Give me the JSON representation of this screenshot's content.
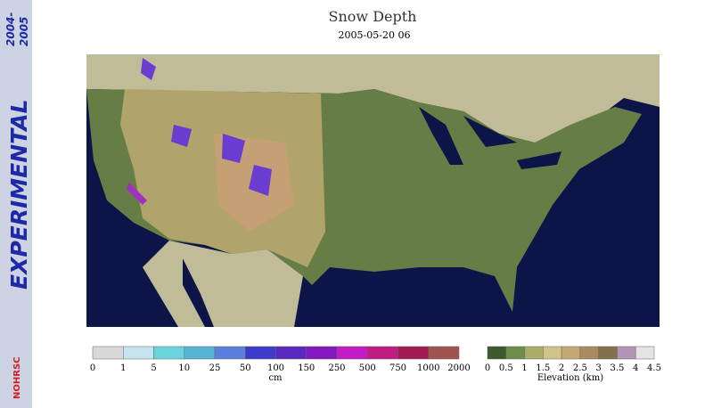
{
  "header": {
    "title": "Snow Depth",
    "timestamp": "2005-05-20 06"
  },
  "sidebar": {
    "label": "EXPERIMENTAL",
    "season": [
      "2004-",
      "2005"
    ],
    "logo": "NOHRSC"
  },
  "snow_legend": {
    "ticks": [
      0,
      1,
      5,
      10,
      25,
      50,
      100,
      150,
      250,
      500,
      750,
      1000,
      2000
    ],
    "unit": "cm",
    "colors": [
      "#d8d8d8",
      "#c4e4f0",
      "#6ad4dc",
      "#58b4d4",
      "#5a80dc",
      "#3c3cc8",
      "#5a28c0",
      "#8418c0",
      "#c41cc4",
      "#c01c84",
      "#a01c50",
      "#a05450"
    ]
  },
  "elevation_legend": {
    "ticks": [
      0,
      0.5,
      1,
      1.5,
      2,
      2.5,
      3,
      3.5,
      4,
      4.5
    ],
    "unit": "Elevation (km)",
    "colors": [
      "#3c5a2c",
      "#6e8c4c",
      "#a8ac68",
      "#d0c488",
      "#c4a874",
      "#a88c60",
      "#84704c",
      "#b494b4",
      "#e4e4e4"
    ]
  }
}
